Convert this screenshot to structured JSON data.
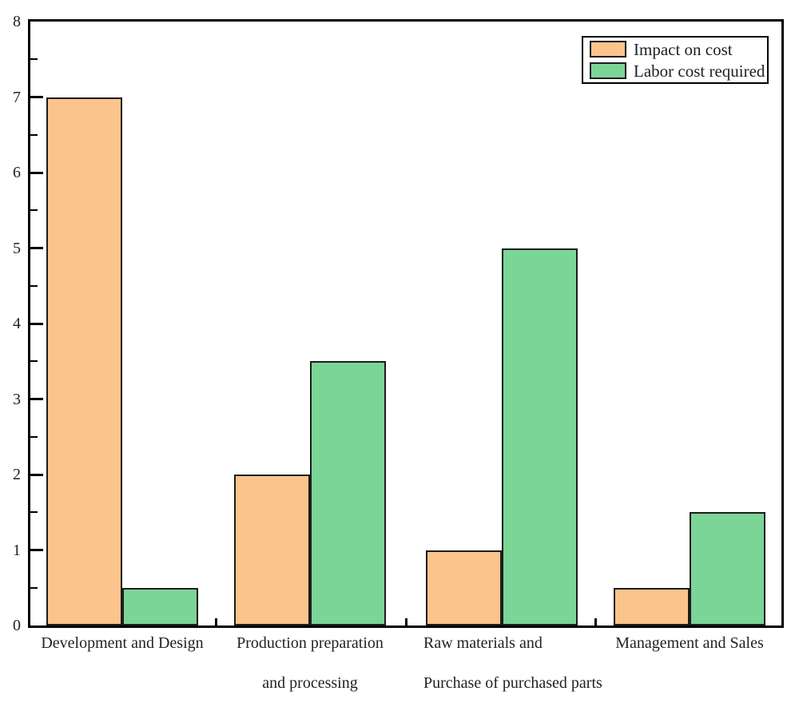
{
  "chart_data": {
    "type": "bar",
    "title": "",
    "xlabel": "",
    "ylabel": "",
    "categories": [
      {
        "lines": [
          "Development and Design"
        ]
      },
      {
        "lines": [
          "Production preparation",
          "and processing"
        ]
      },
      {
        "lines": [
          "Raw materials and",
          "Purchase of purchased parts"
        ]
      },
      {
        "lines": [
          "Management and Sales"
        ]
      }
    ],
    "series": [
      {
        "name": "Impact on cost",
        "color": "#fbc48c",
        "values": [
          7,
          2,
          1,
          0.5
        ]
      },
      {
        "name": "Labor cost required",
        "color": "#7bd597",
        "values": [
          0.5,
          3.5,
          5,
          1.5
        ]
      }
    ],
    "ylim": [
      0,
      8
    ],
    "y_tick_labels": [
      "0",
      "1",
      "2",
      "3",
      "4",
      "5",
      "6",
      "7",
      "8"
    ],
    "y_minor_tick_step": 0.5,
    "grid": false,
    "legend_position": "top-right"
  },
  "colors": {
    "background": "#ffffff",
    "axis": "#000000",
    "bar_border": "#1c1c1c",
    "text": "#222222",
    "legend_border": "#000000",
    "impact_on_cost_fill": "#fbc48c",
    "labor_cost_required_fill": "#7bd597"
  }
}
